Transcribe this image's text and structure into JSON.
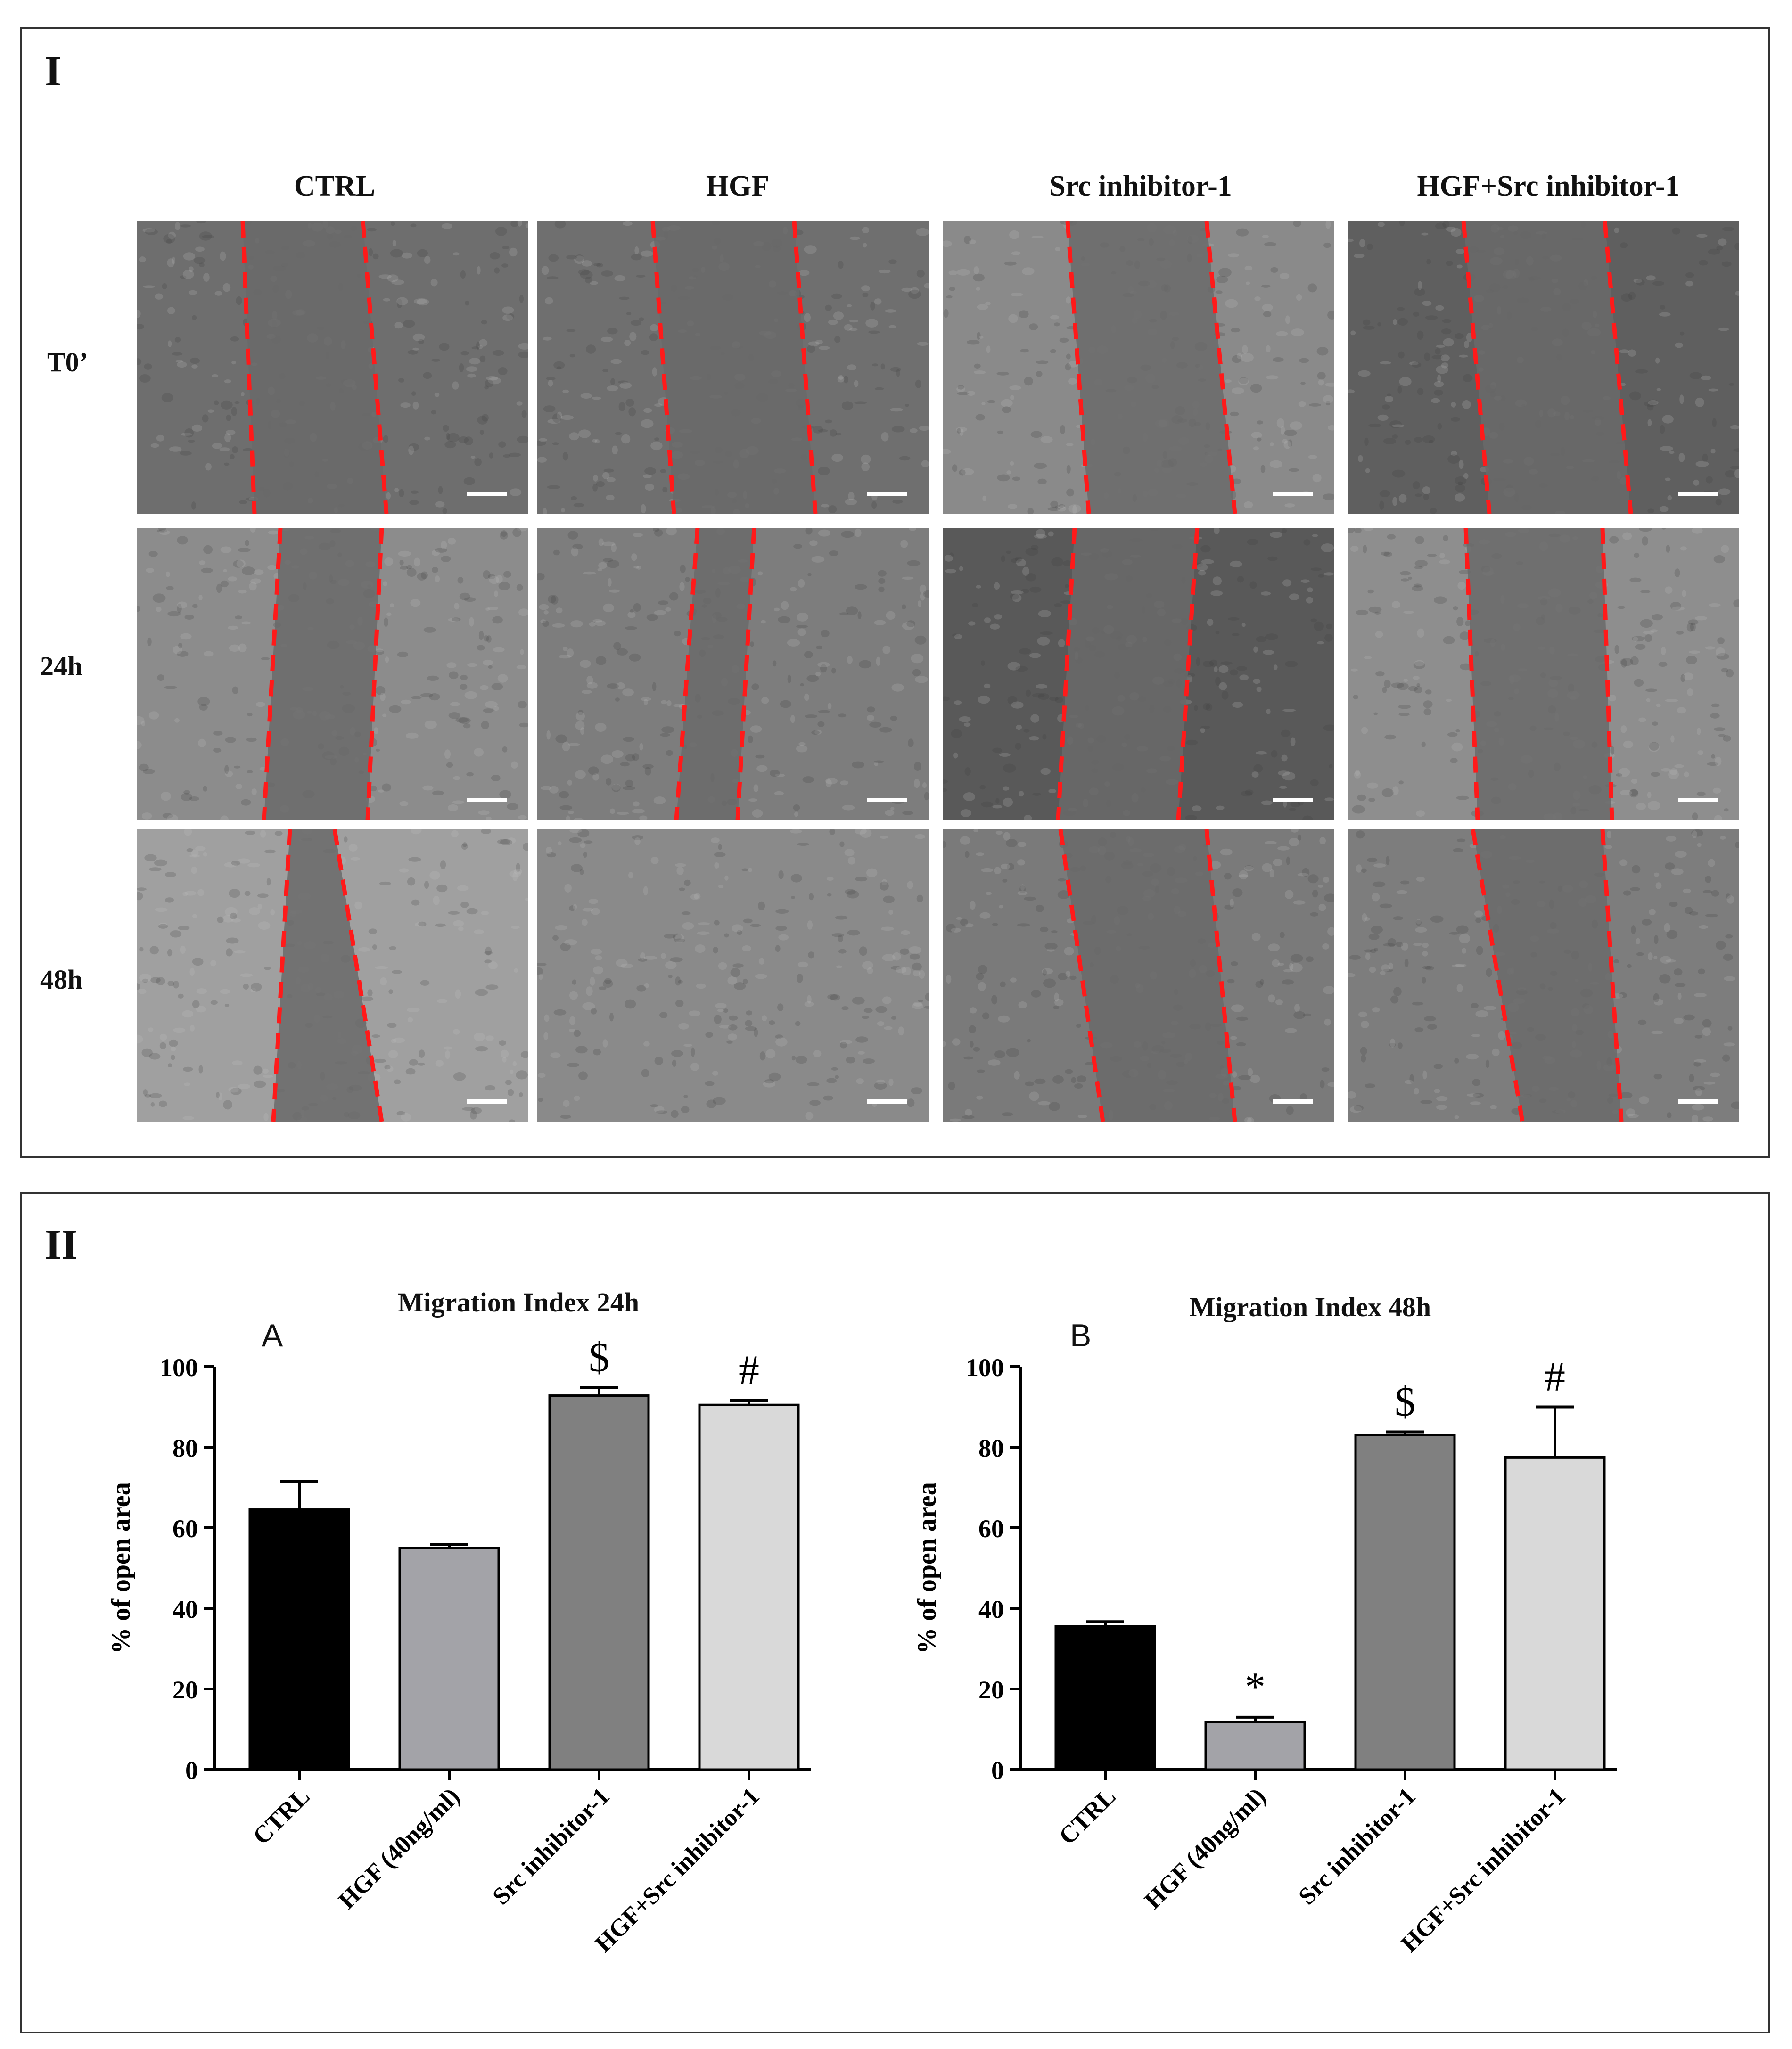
{
  "panel_I": {
    "label": "I",
    "columns": [
      "CTRL",
      "HGF",
      "Src inhibitor-1",
      "HGF+Src inhibitor-1"
    ],
    "rows": [
      "T0’",
      "24h",
      "48h"
    ]
  },
  "panel_II": {
    "label": "II"
  },
  "chart_data": [
    {
      "type": "bar",
      "panel_letter": "A",
      "title": "Migration Index 24h",
      "ylabel": "% of open area",
      "xlabel": "",
      "categories": [
        "CTRL",
        "HGF (40ng/ml)",
        "Src inhibitor-1",
        "HGF+Src inhibitor-1"
      ],
      "values": [
        64.5,
        55,
        92.8,
        90.5
      ],
      "errors": [
        7,
        0.8,
        2,
        1.2
      ],
      "colors": [
        "#000000",
        "#a3a3a8",
        "#808080",
        "#d9d9d9"
      ],
      "annotations": [
        "",
        "",
        "$",
        "#"
      ],
      "ylim": [
        0,
        100
      ],
      "yticks": [
        0,
        20,
        40,
        60,
        80,
        100
      ]
    },
    {
      "type": "bar",
      "panel_letter": "B",
      "title": "Migration Index 48h",
      "ylabel": "% of open area",
      "xlabel": "",
      "categories": [
        "CTRL",
        "HGF (40ng/ml)",
        "Src inhibitor-1",
        "HGF+Src inhibitor-1"
      ],
      "values": [
        35.5,
        11.8,
        83,
        77.5
      ],
      "errors": [
        1.2,
        1.2,
        0.8,
        12.5
      ],
      "colors": [
        "#000000",
        "#a3a3a8",
        "#808080",
        "#d9d9d9"
      ],
      "annotations": [
        "",
        "*",
        "$",
        "#"
      ],
      "ylim": [
        0,
        100
      ],
      "yticks": [
        0,
        20,
        40,
        60,
        80,
        100
      ]
    }
  ]
}
